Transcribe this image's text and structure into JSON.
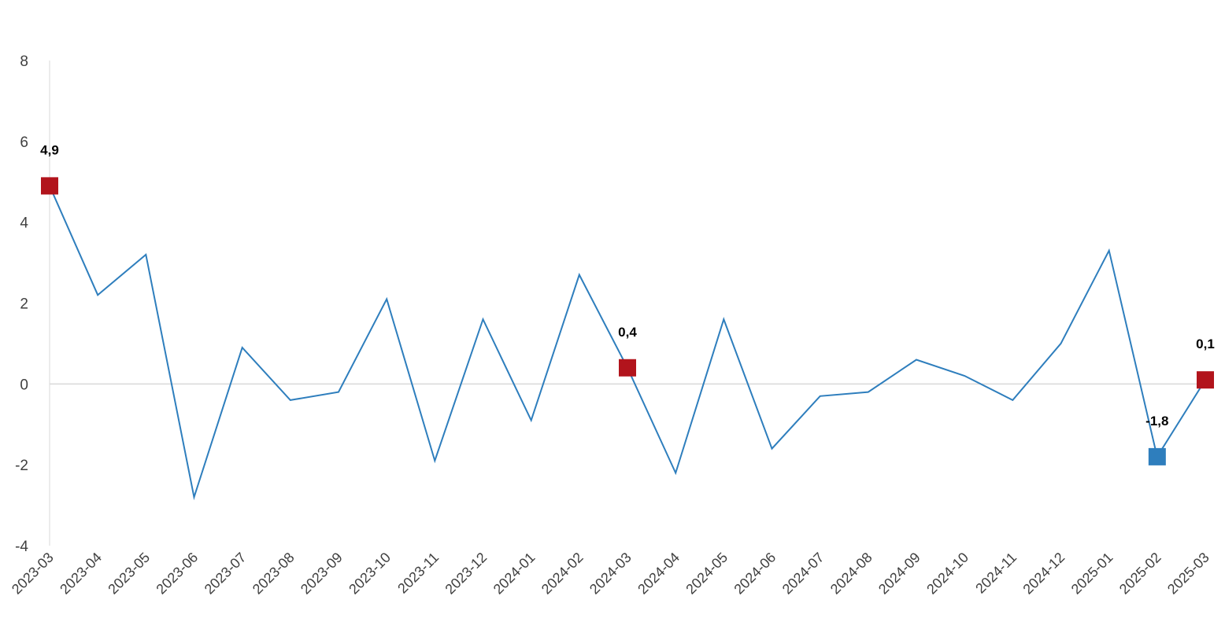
{
  "chart_data": {
    "type": "line",
    "title": "",
    "xlabel": "",
    "ylabel": "",
    "ylim": [
      -4,
      8
    ],
    "yticks": [
      "8",
      "6",
      "4",
      "2",
      "0",
      "-2",
      "-4"
    ],
    "ytick_values": [
      8,
      6,
      4,
      2,
      0,
      -2,
      -4
    ],
    "categories": [
      "2023-03",
      "2023-04",
      "2023-05",
      "2023-06",
      "2023-07",
      "2023-08",
      "2023-09",
      "2023-10",
      "2023-11",
      "2023-12",
      "2024-01",
      "2024-02",
      "2024-03",
      "2024-04",
      "2024-05",
      "2024-06",
      "2024-07",
      "2024-08",
      "2024-09",
      "2024-10",
      "2024-11",
      "2024-12",
      "2025-01",
      "2025-02",
      "2025-03"
    ],
    "series": [
      {
        "values": [
          4.9,
          2.2,
          3.2,
          -2.8,
          0.9,
          -0.4,
          -0.2,
          2.1,
          -1.9,
          1.6,
          -0.9,
          2.7,
          0.4,
          -2.2,
          1.6,
          -1.6,
          -0.3,
          -0.2,
          0.6,
          0.2,
          -0.4,
          1.0,
          3.3,
          -1.8,
          0.1
        ]
      }
    ],
    "highlights": [
      {
        "index": 0,
        "label": "4,9",
        "color": "#b2141c"
      },
      {
        "index": 12,
        "label": "0,4",
        "color": "#b2141c"
      },
      {
        "index": 23,
        "label": "-1,8",
        "color": "#2e7ebd"
      },
      {
        "index": 24,
        "label": "0,1",
        "color": "#b2141c"
      }
    ],
    "line_color": "#2e7ebd",
    "zero_line_color": "#d9d9d9",
    "grid": false,
    "legend": "none"
  }
}
